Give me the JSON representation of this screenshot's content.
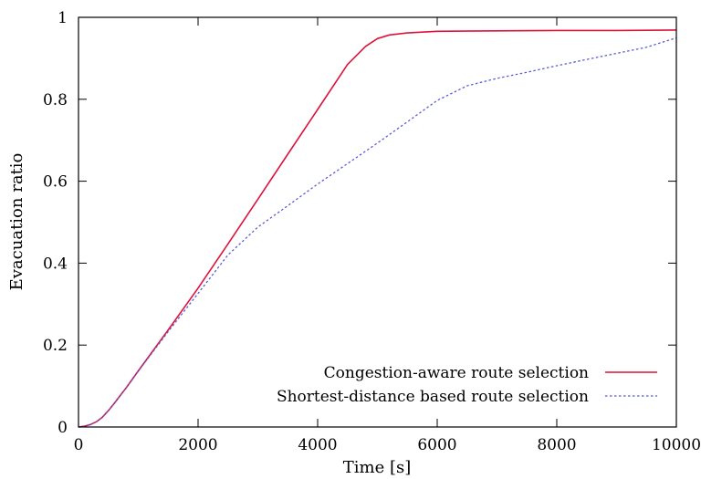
{
  "chart_data": {
    "type": "line",
    "title": "",
    "xlabel": "Time [s]",
    "ylabel": "Evacuation ratio",
    "xlim": [
      0,
      10000
    ],
    "ylim": [
      0,
      1
    ],
    "x_ticks": [
      0,
      2000,
      4000,
      6000,
      8000,
      10000
    ],
    "y_ticks": [
      0,
      0.2,
      0.4,
      0.6,
      0.8,
      1
    ],
    "x_tick_labels": [
      "0",
      "2000",
      "4000",
      "6000",
      "8000",
      "10000"
    ],
    "y_tick_labels": [
      "0",
      "0.2",
      "0.4",
      "0.6",
      "0.8",
      "1"
    ],
    "grid": false,
    "legend_position": "bottom-right",
    "series": [
      {
        "name": "Congestion-aware route selection",
        "color": "#dc143c",
        "dash": "solid",
        "points": [
          [
            0,
            0
          ],
          [
            100,
            0.002
          ],
          [
            200,
            0.006
          ],
          [
            300,
            0.013
          ],
          [
            400,
            0.024
          ],
          [
            500,
            0.04
          ],
          [
            600,
            0.058
          ],
          [
            700,
            0.077
          ],
          [
            800,
            0.096
          ],
          [
            1000,
            0.137
          ],
          [
            1500,
            0.237
          ],
          [
            2000,
            0.339
          ],
          [
            2500,
            0.447
          ],
          [
            3000,
            0.556
          ],
          [
            3500,
            0.666
          ],
          [
            4000,
            0.775
          ],
          [
            4500,
            0.885
          ],
          [
            4800,
            0.929
          ],
          [
            5000,
            0.948
          ],
          [
            5200,
            0.957
          ],
          [
            5500,
            0.962
          ],
          [
            6000,
            0.966
          ],
          [
            7000,
            0.967
          ],
          [
            8000,
            0.968
          ],
          [
            9000,
            0.968
          ],
          [
            10000,
            0.969
          ]
        ]
      },
      {
        "name": "Shortest-distance based route selection",
        "color": "#5b5bd6",
        "dash": "dotted",
        "points": [
          [
            0,
            0
          ],
          [
            100,
            0.002
          ],
          [
            200,
            0.006
          ],
          [
            300,
            0.013
          ],
          [
            400,
            0.024
          ],
          [
            500,
            0.04
          ],
          [
            600,
            0.058
          ],
          [
            700,
            0.077
          ],
          [
            800,
            0.096
          ],
          [
            1000,
            0.136
          ],
          [
            1500,
            0.233
          ],
          [
            2000,
            0.326
          ],
          [
            2500,
            0.42
          ],
          [
            3000,
            0.488
          ],
          [
            3500,
            0.54
          ],
          [
            4000,
            0.593
          ],
          [
            4500,
            0.643
          ],
          [
            5000,
            0.693
          ],
          [
            5500,
            0.745
          ],
          [
            6000,
            0.797
          ],
          [
            6500,
            0.833
          ],
          [
            7000,
            0.851
          ],
          [
            7500,
            0.866
          ],
          [
            8000,
            0.882
          ],
          [
            8500,
            0.897
          ],
          [
            9000,
            0.912
          ],
          [
            9500,
            0.927
          ],
          [
            10000,
            0.95
          ]
        ]
      }
    ]
  }
}
